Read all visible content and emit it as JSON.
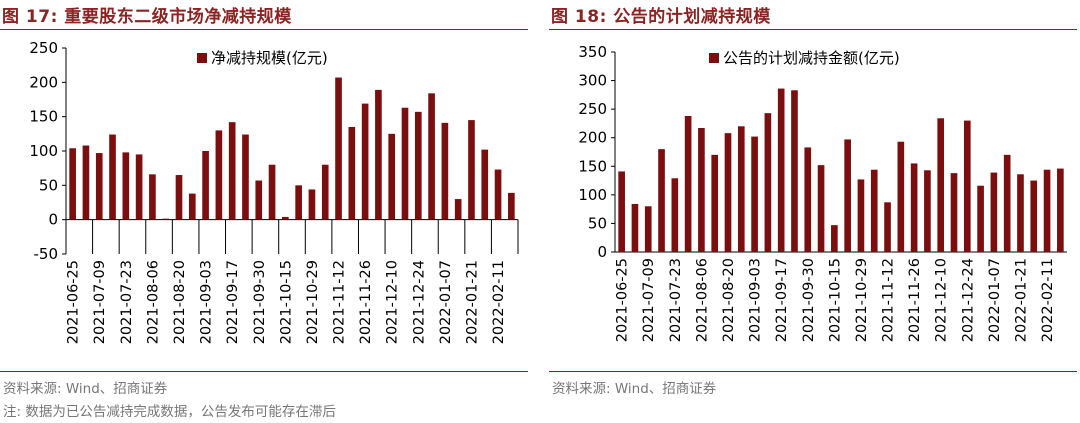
{
  "colors": {
    "bar": "#7b0f0f",
    "accent": "#8b2323",
    "axis": "#000000",
    "muted": "#777777"
  },
  "charts": {
    "left": {
      "heading": "图 17:  重要股东二级市场净减持规模",
      "source": "资料来源:  Wind、招商证券",
      "note": "注:  数据为已公告减持完成数据，公告发布可能存在滞后"
    },
    "right": {
      "heading": "图 18:  公告的计划减持规模",
      "source": "资料来源:  Wind、招商证券"
    }
  },
  "chart_data": [
    {
      "type": "bar",
      "title": "重要股东二级市场净减持规模",
      "legend": "净减持规模(亿元)",
      "legend_position": "top-center",
      "ylim": [
        -50,
        250
      ],
      "yticks": [
        -50,
        0,
        50,
        100,
        150,
        200,
        250
      ],
      "xtick_labels": [
        "2021-06-25",
        "2021-07-09",
        "2021-07-23",
        "2021-08-06",
        "2021-08-20",
        "2021-09-03",
        "2021-09-17",
        "2021-09-30",
        "2021-10-15",
        "2021-10-29",
        "2021-11-12",
        "2021-11-26",
        "2021-12-10",
        "2021-12-24",
        "2022-01-07",
        "2022-01-21",
        "2022-02-11"
      ],
      "values": [
        104,
        108,
        97,
        124,
        98,
        95,
        66,
        0,
        65,
        38,
        100,
        130,
        142,
        124,
        57,
        80,
        4,
        50,
        44,
        80,
        207,
        135,
        169,
        189,
        125,
        163,
        157,
        184,
        141,
        30,
        145,
        102,
        73,
        39
      ]
    },
    {
      "type": "bar",
      "title": "公告的计划减持规模",
      "legend": "公告的计划减持金额(亿元)",
      "legend_position": "top-center",
      "ylim": [
        0,
        350
      ],
      "yticks": [
        0,
        50,
        100,
        150,
        200,
        250,
        300,
        350
      ],
      "xtick_labels": [
        "2021-06-25",
        "2021-07-09",
        "2021-07-23",
        "2021-08-06",
        "2021-08-20",
        "2021-09-03",
        "2021-09-17",
        "2021-09-30",
        "2021-10-15",
        "2021-10-29",
        "2021-11-12",
        "2021-11-26",
        "2021-12-10",
        "2021-12-24",
        "2022-01-07",
        "2022-01-21",
        "2022-02-11"
      ],
      "values": [
        141,
        84,
        80,
        180,
        129,
        238,
        217,
        170,
        208,
        220,
        202,
        243,
        286,
        283,
        183,
        152,
        47,
        197,
        127,
        144,
        87,
        193,
        155,
        143,
        234,
        138,
        230,
        116,
        139,
        170,
        136,
        125,
        144,
        146
      ]
    }
  ]
}
